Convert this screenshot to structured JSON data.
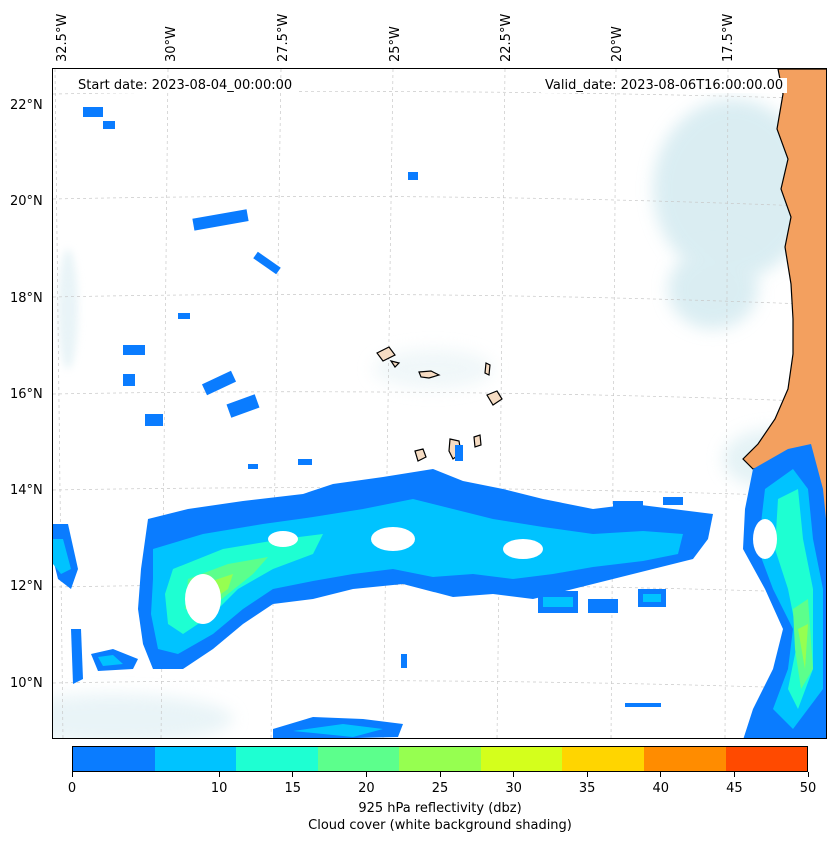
{
  "header": {
    "start_date": "Start date: 2023-08-04_00:00:00",
    "valid_date": "Valid_date: 2023-08-06T16:00:00.00"
  },
  "axes": {
    "longitude_labels": [
      "32.5°W",
      "30°W",
      "27.5°W",
      "25°W",
      "22.5°W",
      "20°W",
      "17.5°W"
    ],
    "latitude_labels": [
      "22°N",
      "20°N",
      "18°N",
      "16°N",
      "14°N",
      "12°N",
      "10°N"
    ],
    "gridlines": true
  },
  "colorbar": {
    "ticks": [
      "0",
      "5",
      "10",
      "15",
      "20",
      "25",
      "30",
      "35",
      "40",
      "45",
      "50"
    ],
    "visible_tick_labels": [
      "0",
      "10",
      "15",
      "20",
      "25",
      "30",
      "35",
      "40",
      "45",
      "50"
    ],
    "colors": [
      "#0a7cff",
      "#00c3ff",
      "#1effd2",
      "#5cff8c",
      "#96ff50",
      "#d4ff1c",
      "#ffd500",
      "#ff8c00",
      "#ff4a00"
    ],
    "label": "925 hPa reflectivity (dbz)",
    "sublabel": "Cloud cover (white background shading)"
  },
  "map": {
    "land_color": "#f3a05f",
    "island_color": "#f6dcc3",
    "cloud_color": "#bcdfe8"
  }
}
